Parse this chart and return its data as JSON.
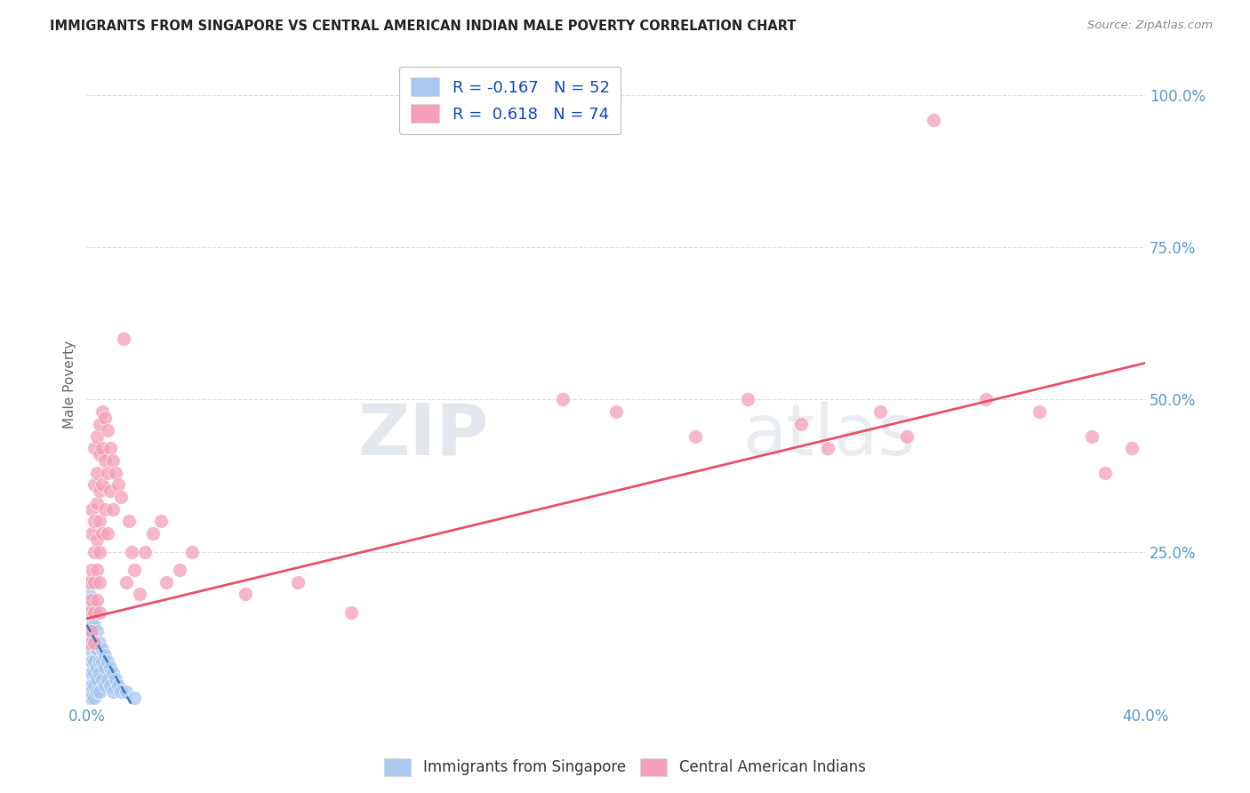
{
  "title": "IMMIGRANTS FROM SINGAPORE VS CENTRAL AMERICAN INDIAN MALE POVERTY CORRELATION CHART",
  "source": "Source: ZipAtlas.com",
  "ylabel": "Male Poverty",
  "xlim": [
    0.0,
    0.4
  ],
  "ylim": [
    0.0,
    1.05
  ],
  "legend_r_blue": "-0.167",
  "legend_n_blue": "52",
  "legend_r_pink": "0.618",
  "legend_n_pink": "74",
  "blue_color": "#a8c8f0",
  "pink_color": "#f4a0b8",
  "blue_line_color": "#4477bb",
  "pink_line_color": "#e8506a",
  "watermark_color": "#c8d8e8",
  "background_color": "#ffffff",
  "grid_color": "#dddddd",
  "tick_color": "#5599cc",
  "title_color": "#222222",
  "ylabel_color": "#666666",
  "source_color": "#888888",
  "blue_x": [
    0.0005,
    0.001,
    0.001,
    0.001,
    0.001,
    0.001,
    0.001,
    0.001,
    0.0015,
    0.0015,
    0.002,
    0.002,
    0.002,
    0.002,
    0.002,
    0.002,
    0.002,
    0.002,
    0.002,
    0.003,
    0.003,
    0.003,
    0.003,
    0.003,
    0.003,
    0.003,
    0.004,
    0.004,
    0.004,
    0.004,
    0.004,
    0.005,
    0.005,
    0.005,
    0.005,
    0.006,
    0.006,
    0.006,
    0.007,
    0.007,
    0.007,
    0.008,
    0.008,
    0.009,
    0.009,
    0.01,
    0.01,
    0.011,
    0.012,
    0.013,
    0.015,
    0.018
  ],
  "blue_y": [
    0.1,
    0.18,
    0.15,
    0.12,
    0.08,
    0.05,
    0.03,
    0.01,
    0.12,
    0.07,
    0.2,
    0.16,
    0.13,
    0.1,
    0.07,
    0.05,
    0.03,
    0.02,
    0.01,
    0.16,
    0.13,
    0.1,
    0.07,
    0.05,
    0.03,
    0.01,
    0.12,
    0.09,
    0.06,
    0.04,
    0.02,
    0.1,
    0.07,
    0.05,
    0.02,
    0.09,
    0.07,
    0.04,
    0.08,
    0.06,
    0.03,
    0.07,
    0.04,
    0.06,
    0.03,
    0.05,
    0.02,
    0.04,
    0.03,
    0.02,
    0.02,
    0.01
  ],
  "pink_x": [
    0.001,
    0.001,
    0.001,
    0.002,
    0.002,
    0.002,
    0.002,
    0.002,
    0.003,
    0.003,
    0.003,
    0.003,
    0.003,
    0.003,
    0.003,
    0.004,
    0.004,
    0.004,
    0.004,
    0.004,
    0.004,
    0.005,
    0.005,
    0.005,
    0.005,
    0.005,
    0.005,
    0.005,
    0.006,
    0.006,
    0.006,
    0.006,
    0.007,
    0.007,
    0.007,
    0.008,
    0.008,
    0.008,
    0.009,
    0.009,
    0.01,
    0.01,
    0.011,
    0.012,
    0.013,
    0.014,
    0.015,
    0.016,
    0.017,
    0.018,
    0.02,
    0.022,
    0.025,
    0.028,
    0.03,
    0.035,
    0.04,
    0.06,
    0.08,
    0.1,
    0.18,
    0.2,
    0.23,
    0.25,
    0.27,
    0.28,
    0.3,
    0.31,
    0.32,
    0.34,
    0.36,
    0.38,
    0.385,
    0.395
  ],
  "pink_y": [
    0.2,
    0.15,
    0.1,
    0.32,
    0.28,
    0.22,
    0.17,
    0.12,
    0.42,
    0.36,
    0.3,
    0.25,
    0.2,
    0.15,
    0.1,
    0.44,
    0.38,
    0.33,
    0.27,
    0.22,
    0.17,
    0.46,
    0.41,
    0.35,
    0.3,
    0.25,
    0.2,
    0.15,
    0.48,
    0.42,
    0.36,
    0.28,
    0.47,
    0.4,
    0.32,
    0.45,
    0.38,
    0.28,
    0.42,
    0.35,
    0.4,
    0.32,
    0.38,
    0.36,
    0.34,
    0.6,
    0.2,
    0.3,
    0.25,
    0.22,
    0.18,
    0.25,
    0.28,
    0.3,
    0.2,
    0.22,
    0.25,
    0.18,
    0.2,
    0.15,
    0.5,
    0.48,
    0.44,
    0.5,
    0.46,
    0.42,
    0.48,
    0.44,
    0.96,
    0.5,
    0.48,
    0.44,
    0.38,
    0.42
  ],
  "blue_line_x": [
    0.0,
    0.022
  ],
  "blue_line_y": [
    0.13,
    -0.04
  ],
  "pink_line_x": [
    0.0,
    0.4
  ],
  "pink_line_y": [
    0.14,
    0.56
  ]
}
